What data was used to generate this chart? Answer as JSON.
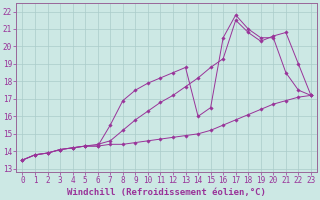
{
  "background_color": "#cce8e4",
  "grid_color": "#aaccca",
  "line_color": "#993399",
  "marker_color": "#993399",
  "xlabel": "Windchill (Refroidissement éolien,°C)",
  "xlabel_fontsize": 6.5,
  "xtick_labels": [
    "0",
    "1",
    "2",
    "3",
    "4",
    "5",
    "6",
    "7",
    "8",
    "9",
    "10",
    "11",
    "12",
    "13",
    "14",
    "15",
    "16",
    "17",
    "18",
    "19",
    "20",
    "21",
    "22",
    "23"
  ],
  "ytick_labels": [
    "13",
    "14",
    "15",
    "16",
    "17",
    "18",
    "19",
    "20",
    "21",
    "22"
  ],
  "ylim": [
    12.8,
    22.5
  ],
  "xlim": [
    -0.5,
    23.5
  ],
  "series1_x": [
    0,
    1,
    2,
    3,
    4,
    5,
    6,
    7,
    8,
    9,
    10,
    11,
    12,
    13,
    14,
    15,
    16,
    17,
    18,
    19,
    20,
    21,
    22,
    23
  ],
  "series1_y": [
    13.5,
    13.8,
    13.9,
    14.1,
    14.2,
    14.3,
    14.3,
    14.4,
    14.4,
    14.5,
    14.6,
    14.7,
    14.8,
    14.9,
    15.0,
    15.2,
    15.5,
    15.8,
    16.1,
    16.4,
    16.7,
    16.9,
    17.1,
    17.2
  ],
  "series2_x": [
    0,
    1,
    2,
    3,
    4,
    5,
    6,
    7,
    8,
    9,
    10,
    11,
    12,
    13,
    14,
    15,
    16,
    17,
    18,
    19,
    20,
    21,
    22,
    23
  ],
  "series2_y": [
    13.5,
    13.8,
    13.9,
    14.1,
    14.2,
    14.3,
    14.3,
    15.5,
    16.9,
    17.5,
    17.9,
    18.2,
    18.5,
    18.8,
    16.0,
    16.5,
    20.5,
    21.8,
    21.0,
    20.5,
    20.5,
    18.5,
    17.5,
    17.2
  ],
  "series3_x": [
    0,
    1,
    2,
    3,
    4,
    5,
    6,
    7,
    8,
    9,
    10,
    11,
    12,
    13,
    14,
    15,
    16,
    17,
    18,
    19,
    20,
    21,
    22,
    23
  ],
  "series3_y": [
    13.5,
    13.8,
    13.9,
    14.1,
    14.2,
    14.3,
    14.4,
    14.6,
    15.2,
    15.8,
    16.3,
    16.8,
    17.2,
    17.7,
    18.2,
    18.8,
    19.3,
    21.5,
    20.8,
    20.3,
    20.6,
    20.8,
    19.0,
    17.2
  ],
  "tick_fontsize": 5.5,
  "tick_color": "#993399",
  "spine_color": "#996699"
}
